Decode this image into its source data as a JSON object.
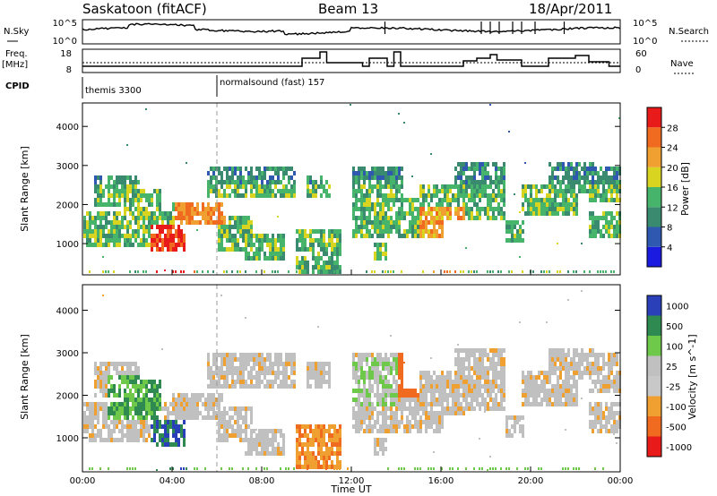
{
  "header": {
    "title": "Saskatoon (fitACF)",
    "beam": "Beam 13",
    "date": "18/Apr/2011"
  },
  "panels": {
    "nsky": {
      "left_label": "N.Sky",
      "right_label": "N.Search",
      "left_ticks": [
        "10^5",
        "10^0"
      ],
      "right_ticks": [
        "10^5",
        "10^0"
      ]
    },
    "freq": {
      "left_label_1": "Freq.",
      "left_label_2": "[MHz]",
      "right_label": "Nave",
      "left_ticks": [
        "18",
        "8"
      ],
      "right_ticks": [
        "60",
        "0"
      ]
    },
    "cpid": {
      "label": "CPID",
      "mode1": "themis 3300",
      "mode2": "normalsound (fast) 157"
    }
  },
  "chart_data": [
    {
      "type": "heatmap",
      "name": "power",
      "ylabel": "Slant Range [km]",
      "yticks": [
        1000,
        2000,
        3000,
        4000
      ],
      "ylim": [
        200,
        4600
      ],
      "xlim": [
        0,
        24
      ],
      "colorbar_label": "Power [dB]",
      "colorbar_ticks": [
        4,
        8,
        12,
        16,
        20,
        24,
        28
      ],
      "colorbar_range": [
        0,
        32
      ],
      "colors": [
        "#1a1ae0",
        "#2f59b0",
        "#3a8a70",
        "#46b46a",
        "#d8d420",
        "#f0a030",
        "#f06a20",
        "#e81a1a"
      ]
    },
    {
      "type": "heatmap",
      "name": "velocity",
      "ylabel": "Slant Range [km]",
      "yticks": [
        1000,
        2000,
        3000,
        4000
      ],
      "ylim": [
        200,
        4600
      ],
      "xlim": [
        0,
        24
      ],
      "xlabel": "Time UT",
      "xticks": [
        "00:00",
        "04:00",
        "08:00",
        "12:00",
        "16:00",
        "20:00",
        "00:00"
      ],
      "colorbar_label": "Velocity [m s^-1]",
      "colorbar_ticks": [
        "1000",
        "500",
        "100",
        "25",
        "-25",
        "-100",
        "-500",
        "-1000"
      ],
      "colors": [
        "#2a40b8",
        "#2e8a50",
        "#6ec84a",
        "#c0c0c0",
        "#c8c8c8",
        "#f0a030",
        "#f06a20",
        "#e81a1a"
      ]
    }
  ]
}
